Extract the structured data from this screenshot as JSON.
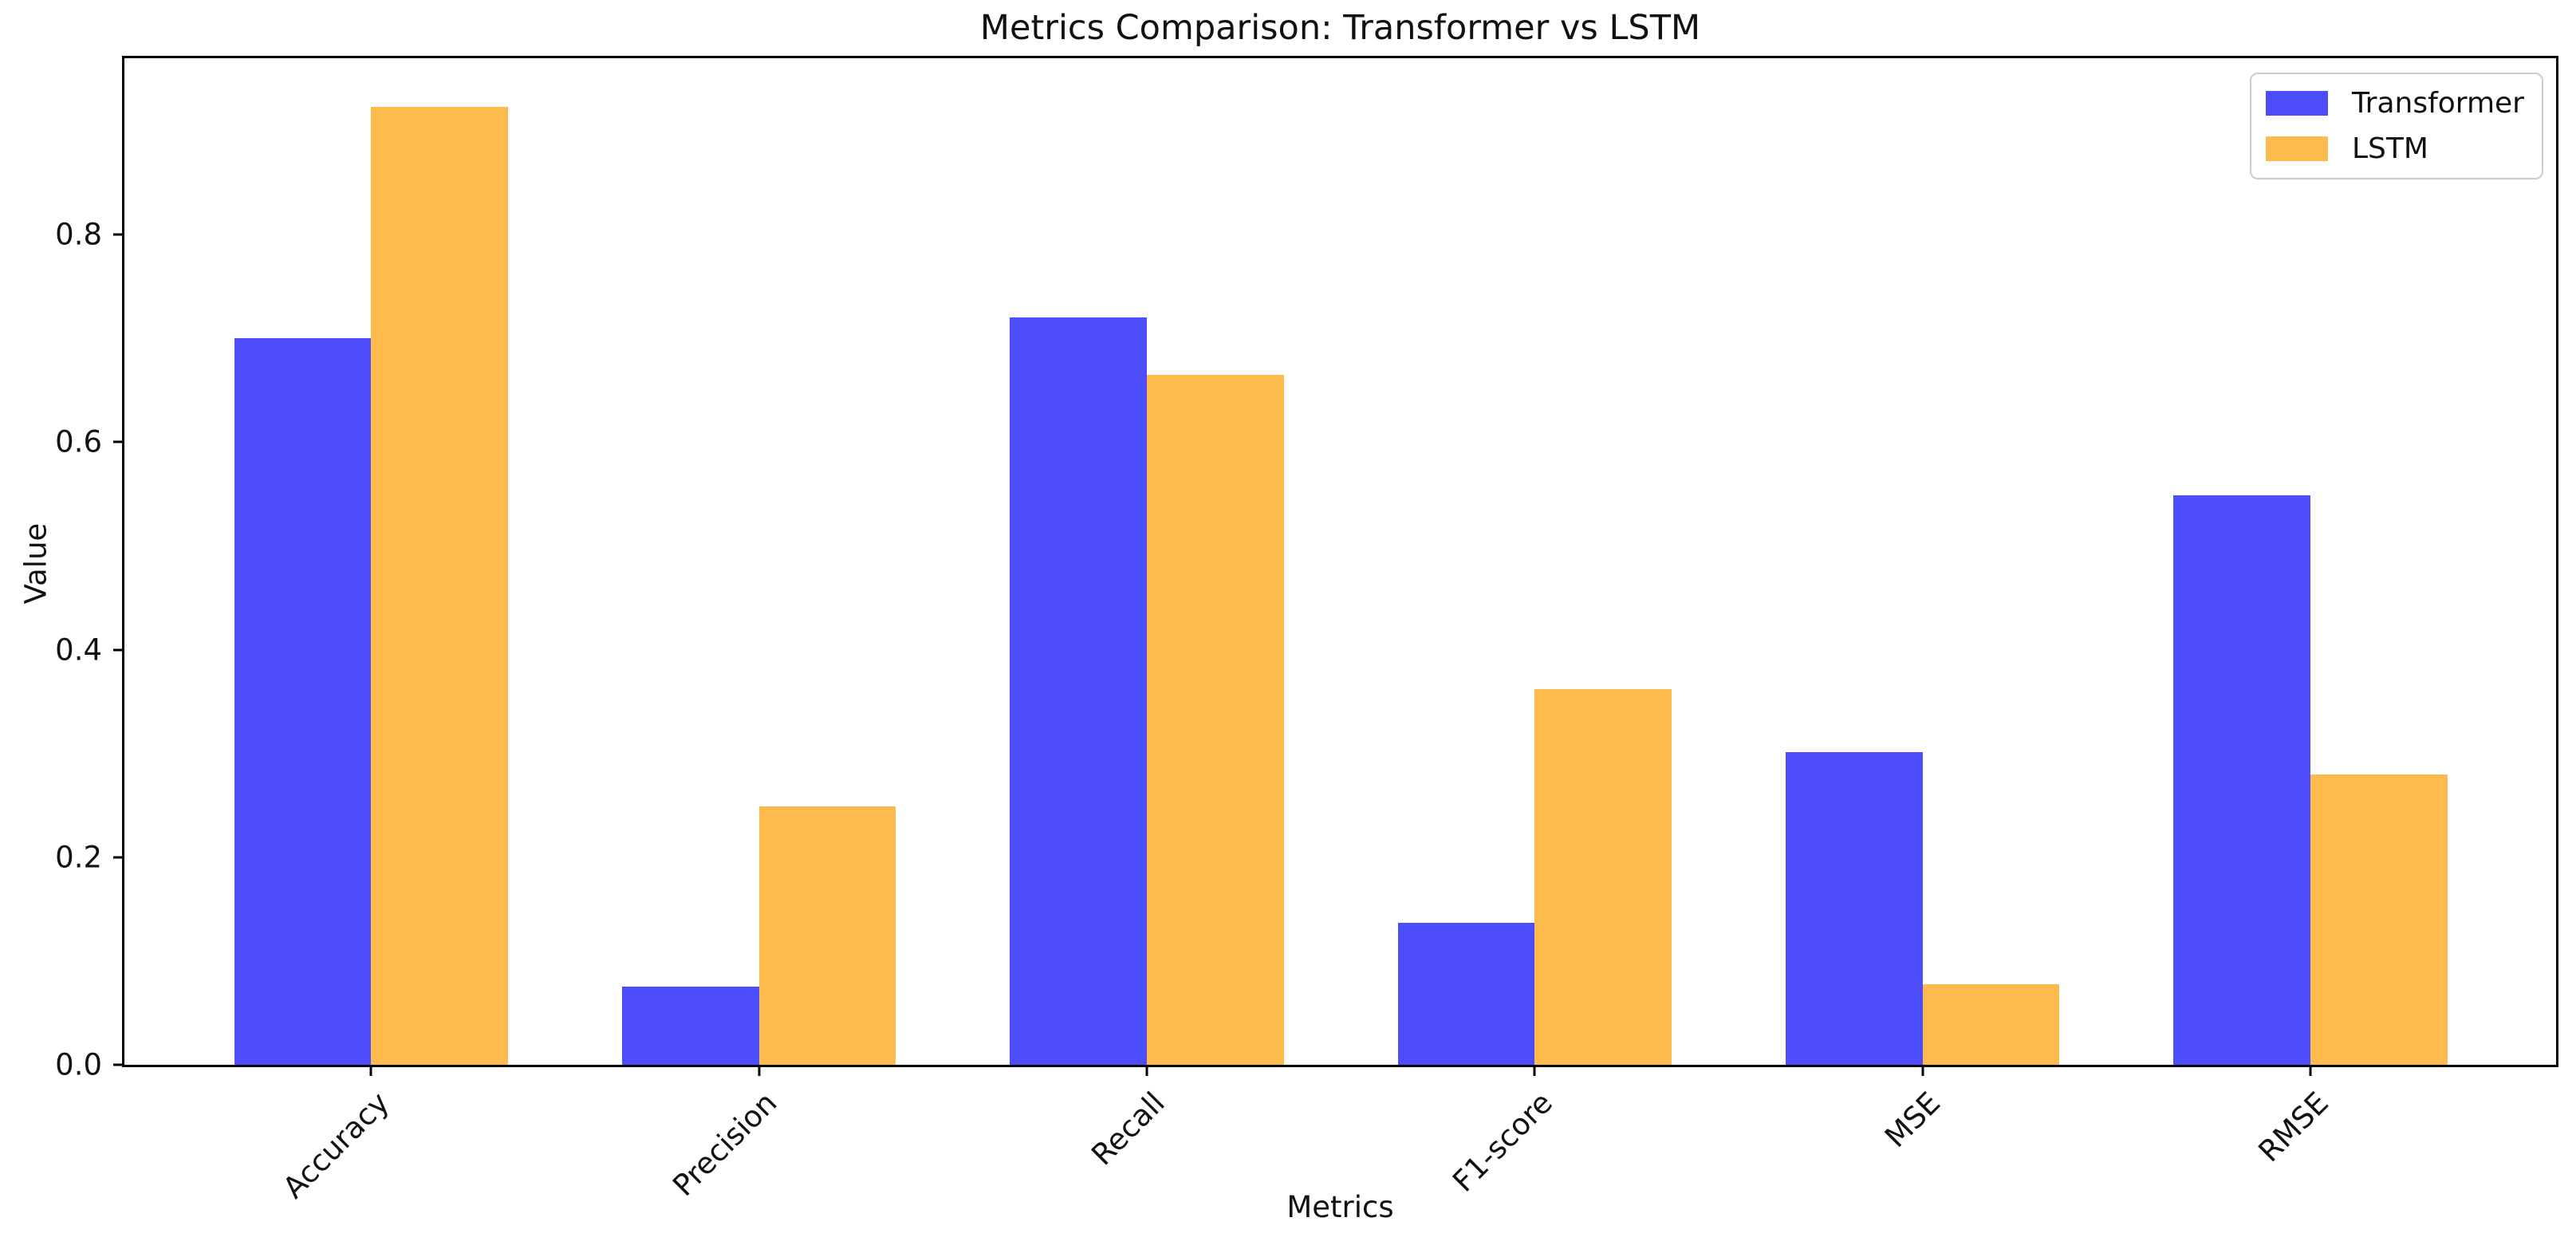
{
  "chart_data": {
    "type": "bar",
    "title": "Metrics Comparison: Transformer vs LSTM",
    "xlabel": "Metrics",
    "ylabel": "Value",
    "categories": [
      "Accuracy",
      "Precision",
      "Recall",
      "F1-score",
      "MSE",
      "RMSE"
    ],
    "series": [
      {
        "name": "Transformer",
        "color": "#4d4dfb",
        "values": [
          0.7,
          0.075,
          0.72,
          0.137,
          0.301,
          0.549
        ]
      },
      {
        "name": "LSTM",
        "color": "#fdbb4d",
        "values": [
          0.923,
          0.249,
          0.665,
          0.362,
          0.078,
          0.28
        ]
      }
    ],
    "ylim": [
      0,
      0.97
    ],
    "yticks": [
      0.0,
      0.2,
      0.4,
      0.6,
      0.8
    ],
    "ytick_labels": [
      "0.0",
      "0.2",
      "0.4",
      "0.6",
      "0.8"
    ],
    "x_tick_rotation": 45,
    "grid": false,
    "legend_position": "upper right"
  },
  "colors": {
    "background": "#ffffff",
    "spine": "#000000",
    "text": "#111111",
    "legend_border": "#cccccc",
    "transformer_bar": "#4d4dfb",
    "lstm_bar": "#fdbb4d"
  }
}
